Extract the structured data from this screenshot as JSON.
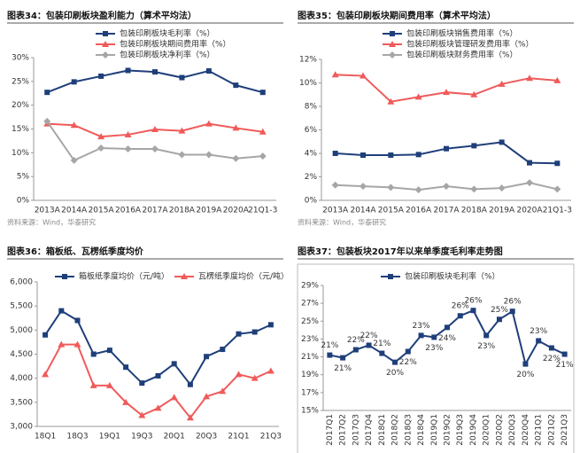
{
  "chart_data": [
    {
      "type": "line",
      "title": "图表34：包装印刷板块盈利能力（算术平均法）",
      "source": "资料来源：Wind，华泰研究",
      "categories": [
        "2013A",
        "2014A",
        "2015A",
        "2016A",
        "2017A",
        "2018A",
        "2019A",
        "2020A",
        "21Q1-3"
      ],
      "ylim": [
        0,
        30
      ],
      "yticks": [
        {
          "value": 0,
          "label": "0%"
        },
        {
          "value": 5,
          "label": "5%"
        },
        {
          "value": 10,
          "label": "10%"
        },
        {
          "value": 15,
          "label": "15%"
        },
        {
          "value": 20,
          "label": "20%"
        },
        {
          "value": 25,
          "label": "25%"
        },
        {
          "value": 30,
          "label": "30%"
        }
      ],
      "series": [
        {
          "name": "包装印刷板块毛利率（%）",
          "color": "#1f3f7a",
          "marker": "square",
          "values": [
            22.7,
            24.9,
            26.1,
            27.3,
            27.0,
            25.8,
            27.2,
            24.2,
            22.7
          ]
        },
        {
          "name": "包装印刷板块期间费用率（%）",
          "color": "#f05a5a",
          "marker": "triangle",
          "values": [
            16.1,
            15.8,
            13.4,
            13.8,
            14.9,
            14.6,
            16.1,
            15.2,
            14.4
          ]
        },
        {
          "name": "包装印刷板块净利率（%）",
          "color": "#a6a6a6",
          "marker": "diamond",
          "values": [
            16.6,
            8.4,
            11.0,
            10.8,
            10.8,
            9.6,
            9.6,
            8.8,
            9.3
          ]
        }
      ]
    },
    {
      "type": "line",
      "title": "图表35：包装印刷板块期间费用率（算术平均法）",
      "source": "资料来源：Wind，华泰研究",
      "categories": [
        "2013A",
        "2014A",
        "2015A",
        "2016A",
        "2017A",
        "2018A",
        "2019A",
        "2020A",
        "21Q1-3"
      ],
      "ylim": [
        0,
        12
      ],
      "yticks": [
        {
          "value": 0,
          "label": "0%"
        },
        {
          "value": 2,
          "label": "2%"
        },
        {
          "value": 4,
          "label": "4%"
        },
        {
          "value": 6,
          "label": "6%"
        },
        {
          "value": 8,
          "label": "8%"
        },
        {
          "value": 10,
          "label": "10%"
        },
        {
          "value": 12,
          "label": "12%"
        }
      ],
      "series": [
        {
          "name": "包装印刷板块销售费用率（%）",
          "color": "#1f3f7a",
          "marker": "square",
          "values": [
            4.0,
            3.85,
            3.85,
            3.9,
            4.4,
            4.65,
            4.95,
            3.2,
            3.15
          ]
        },
        {
          "name": "包装印刷板块管理研发费用率（%）",
          "color": "#f05a5a",
          "marker": "triangle",
          "values": [
            10.7,
            10.6,
            8.4,
            8.8,
            9.2,
            9.0,
            9.9,
            10.4,
            10.2
          ]
        },
        {
          "name": "包装印刷板块财务费用率（%）",
          "color": "#a6a6a6",
          "marker": "diamond",
          "values": [
            1.3,
            1.2,
            1.1,
            0.9,
            1.2,
            0.95,
            1.05,
            1.5,
            0.95
          ]
        }
      ]
    },
    {
      "type": "line",
      "title": "图表36：箱板纸、瓦楞纸季度均价",
      "categories": [
        "18Q1",
        null,
        "18Q3",
        null,
        "19Q1",
        null,
        "19Q3",
        null,
        "20Q1",
        null,
        "20Q3",
        null,
        "21Q1",
        null,
        "21Q3"
      ],
      "ylim": [
        3000,
        6000
      ],
      "yticks": [
        {
          "value": 3000,
          "label": "3,000"
        },
        {
          "value": 3500,
          "label": "3,500"
        },
        {
          "value": 4000,
          "label": "4,000"
        },
        {
          "value": 4500,
          "label": "4,500"
        },
        {
          "value": 5000,
          "label": "5,000"
        },
        {
          "value": 5500,
          "label": "5,500"
        },
        {
          "value": 6000,
          "label": "6,000"
        }
      ],
      "series": [
        {
          "name": "箱板纸季度均价（元/吨）",
          "color": "#1f3f7a",
          "marker": "square",
          "values": [
            4900,
            5400,
            5200,
            4500,
            4580,
            4230,
            3900,
            4050,
            4300,
            3870,
            4450,
            4600,
            4920,
            4960,
            5110
          ]
        },
        {
          "name": "瓦楞纸季度均价（元/吨）",
          "color": "#f05a5a",
          "marker": "triangle",
          "values": [
            4080,
            4700,
            4700,
            3850,
            3850,
            3500,
            3230,
            3380,
            3600,
            3180,
            3620,
            3730,
            4080,
            4000,
            4150
          ]
        }
      ]
    },
    {
      "type": "line",
      "title": "图表37：包装板块2017年以来单季度毛利率走势图",
      "categories": [
        "2017Q1",
        "2017Q2",
        "2017Q3",
        "2017Q4",
        "2018Q1",
        "2018Q2",
        "2018Q3",
        "2018Q4",
        "2019Q1",
        "2019Q2",
        "2019Q3",
        "2019Q4",
        "2020Q1",
        "2020Q2",
        "2020Q3",
        "2020Q4",
        "2021Q1",
        "2021Q2",
        "2021Q3"
      ],
      "ylim": [
        15,
        29
      ],
      "yticks": [
        {
          "value": 15,
          "label": "15%"
        },
        {
          "value": 17,
          "label": "17%"
        },
        {
          "value": 19,
          "label": "19%"
        },
        {
          "value": 21,
          "label": "21%"
        },
        {
          "value": 23,
          "label": "23%"
        },
        {
          "value": 25,
          "label": "25%"
        },
        {
          "value": 27,
          "label": "27%"
        },
        {
          "value": 29,
          "label": "29%"
        }
      ],
      "series": [
        {
          "name": "包装印刷板块毛利率（%）",
          "color": "#1f3f7a",
          "marker": "square",
          "values": [
            21.2,
            20.9,
            21.8,
            22.3,
            21.4,
            20.4,
            21.6,
            23.4,
            23.2,
            24.3,
            25.6,
            26.2,
            23.4,
            25.2,
            26.1,
            20.2,
            22.8,
            22.0,
            21.3
          ],
          "value_labels": [
            "21%",
            "21%",
            "22%",
            "22%",
            "21%",
            "20%",
            "22%",
            "23%",
            "23%",
            "24%",
            "26%",
            "26%",
            "23%",
            "25%",
            "26%",
            "20%",
            "23%",
            "22%",
            "21%"
          ]
        }
      ]
    }
  ]
}
